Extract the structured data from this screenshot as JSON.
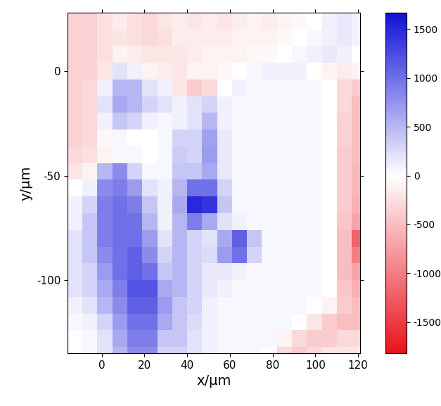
{
  "chart_data": {
    "type": "heatmap",
    "x_label": "x/µm",
    "y_label": "y/µm",
    "x": [
      -12.5,
      -5.5,
      1.5,
      8.5,
      15.5,
      22.5,
      29.5,
      36.5,
      43.5,
      50.5,
      57.5,
      64.5,
      71.5,
      78.5,
      85.5,
      92.5,
      99.5,
      106.5,
      113.5,
      120.5
    ],
    "y": [
      24,
      16,
      8,
      0,
      -8,
      -16,
      -24,
      -32,
      -40,
      -48,
      -56,
      -64,
      -72,
      -80,
      -88,
      -96,
      -104,
      -112,
      -120,
      -128,
      -136
    ],
    "cells": [
      [
        -350,
        -350,
        -250,
        -150,
        -250,
        -300,
        -200,
        -150,
        -200,
        -150,
        -200,
        -150,
        -100,
        -150,
        -100,
        -50,
        0,
        100,
        150,
        100
      ],
      [
        -350,
        -350,
        -250,
        -200,
        -250,
        -300,
        -250,
        -150,
        -150,
        -150,
        -150,
        -100,
        -100,
        -100,
        -50,
        0,
        50,
        100,
        150,
        100
      ],
      [
        -350,
        -350,
        -250,
        -100,
        -150,
        -200,
        -200,
        -200,
        -150,
        -100,
        -100,
        -100,
        -50,
        -50,
        0,
        50,
        100,
        150,
        100,
        0
      ],
      [
        -350,
        -350,
        -200,
        200,
        100,
        -100,
        -150,
        -200,
        -100,
        -100,
        -50,
        0,
        50,
        100,
        100,
        100,
        0,
        -100,
        -150,
        -100
      ],
      [
        -350,
        -300,
        100,
        500,
        500,
        200,
        100,
        -200,
        -400,
        -300,
        0,
        100,
        50,
        50,
        50,
        50,
        50,
        0,
        -300,
        -400
      ],
      [
        -350,
        -300,
        200,
        600,
        500,
        300,
        200,
        100,
        200,
        300,
        100,
        50,
        50,
        50,
        50,
        50,
        50,
        0,
        -300,
        -500
      ],
      [
        -350,
        -300,
        100,
        400,
        300,
        100,
        50,
        100,
        200,
        500,
        100,
        50,
        50,
        50,
        50,
        50,
        50,
        0,
        -350,
        -500
      ],
      [
        -350,
        -300,
        -50,
        50,
        0,
        0,
        50,
        300,
        300,
        650,
        150,
        50,
        50,
        50,
        50,
        50,
        50,
        0,
        -350,
        -500
      ],
      [
        -300,
        -250,
        -100,
        50,
        50,
        0,
        50,
        350,
        300,
        700,
        150,
        50,
        50,
        50,
        50,
        50,
        50,
        0,
        -400,
        -500
      ],
      [
        -200,
        -100,
        500,
        800,
        300,
        50,
        50,
        400,
        400,
        600,
        150,
        50,
        50,
        50,
        50,
        50,
        50,
        0,
        -400,
        -550
      ],
      [
        0,
        100,
        800,
        900,
        700,
        200,
        100,
        500,
        1000,
        1000,
        300,
        50,
        50,
        50,
        50,
        50,
        50,
        0,
        -400,
        -550
      ],
      [
        100,
        300,
        900,
        1000,
        900,
        400,
        100,
        600,
        1500,
        1400,
        400,
        50,
        50,
        50,
        50,
        50,
        50,
        0,
        -400,
        -600
      ],
      [
        100,
        400,
        900,
        1000,
        1000,
        500,
        100,
        500,
        900,
        600,
        200,
        100,
        50,
        50,
        50,
        50,
        50,
        0,
        -450,
        -700
      ],
      [
        200,
        400,
        900,
        1000,
        1000,
        700,
        200,
        500,
        300,
        200,
        600,
        1100,
        400,
        50,
        50,
        50,
        50,
        0,
        -500,
        -1200
      ],
      [
        200,
        400,
        800,
        1000,
        1100,
        800,
        300,
        500,
        300,
        250,
        700,
        1000,
        300,
        50,
        50,
        50,
        50,
        0,
        -500,
        -1000
      ],
      [
        200,
        300,
        700,
        1000,
        1100,
        1000,
        400,
        500,
        300,
        150,
        150,
        100,
        50,
        50,
        50,
        50,
        50,
        0,
        -500,
        -700
      ],
      [
        200,
        300,
        600,
        900,
        1200,
        1200,
        600,
        500,
        300,
        150,
        100,
        50,
        50,
        50,
        50,
        50,
        50,
        0,
        -450,
        -600
      ],
      [
        100,
        200,
        500,
        800,
        1100,
        1100,
        700,
        400,
        300,
        100,
        50,
        50,
        50,
        50,
        50,
        50,
        0,
        -100,
        -400,
        -500
      ],
      [
        50,
        100,
        300,
        700,
        1000,
        1000,
        600,
        400,
        250,
        100,
        50,
        50,
        50,
        50,
        50,
        0,
        -200,
        -400,
        -500,
        -500
      ],
      [
        0,
        50,
        200,
        600,
        900,
        900,
        400,
        400,
        200,
        100,
        50,
        50,
        50,
        50,
        -100,
        -300,
        -400,
        -400,
        -300,
        -300
      ],
      [
        0,
        50,
        200,
        500,
        800,
        800,
        300,
        300,
        200,
        100,
        50,
        50,
        50,
        0,
        -300,
        -400,
        -300,
        -200,
        -200,
        -200
      ]
    ],
    "xlim": [
      -16,
      121
    ],
    "ylim": [
      -135,
      28
    ],
    "xticks": [
      0,
      20,
      40,
      60,
      80,
      100,
      120
    ],
    "yticks": [
      -100,
      -50,
      0
    ],
    "colorbar": {
      "range": [
        -1820,
        1670
      ],
      "ticks": [
        -1500,
        -1000,
        -500,
        0,
        500,
        1000,
        1500
      ]
    },
    "colors": [
      "#e8141c",
      "#ffffff",
      "#1010d8"
    ]
  }
}
